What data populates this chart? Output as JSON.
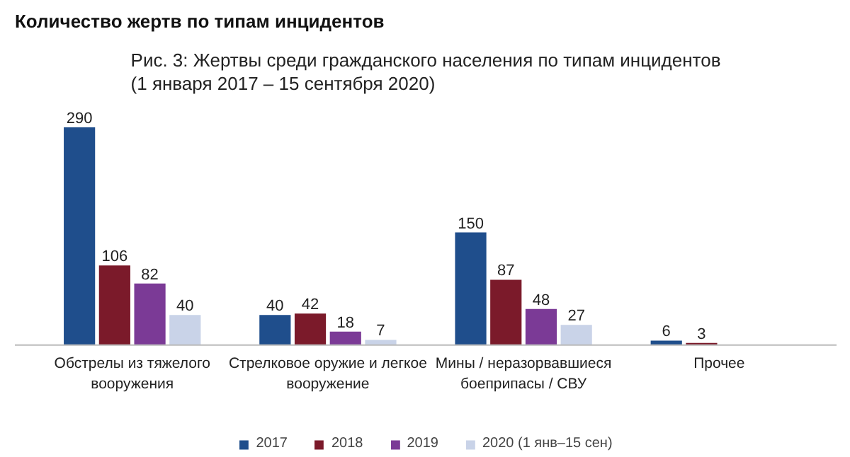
{
  "chart_data": {
    "type": "bar",
    "title": "Количество жертв по типам инцидентов",
    "subtitle": "Рис. 3: Жертвы среди гражданского населения по типам инцидентов (1 января 2017 – 15 сентября 2020)",
    "categories": [
      "Обстрелы из тяжелого вооружения",
      "Стрелковое оружие и легкое вооружение",
      "Мины / неразорвавшиеся боеприпасы / СВУ",
      "Прочее"
    ],
    "series": [
      {
        "name": "2017",
        "color": "#1f4e8c",
        "values": [
          290,
          40,
          150,
          6
        ]
      },
      {
        "name": "2018",
        "color": "#7b1a2a",
        "values": [
          106,
          42,
          87,
          3
        ]
      },
      {
        "name": "2019",
        "color": "#7b3a96",
        "values": [
          82,
          18,
          48,
          null
        ]
      },
      {
        "name": "2020 (1 янв–15 сен)",
        "color": "#c9d3e8",
        "values": [
          40,
          7,
          27,
          null
        ]
      }
    ],
    "data_labels": true,
    "grid": false,
    "legend": "bottom"
  }
}
